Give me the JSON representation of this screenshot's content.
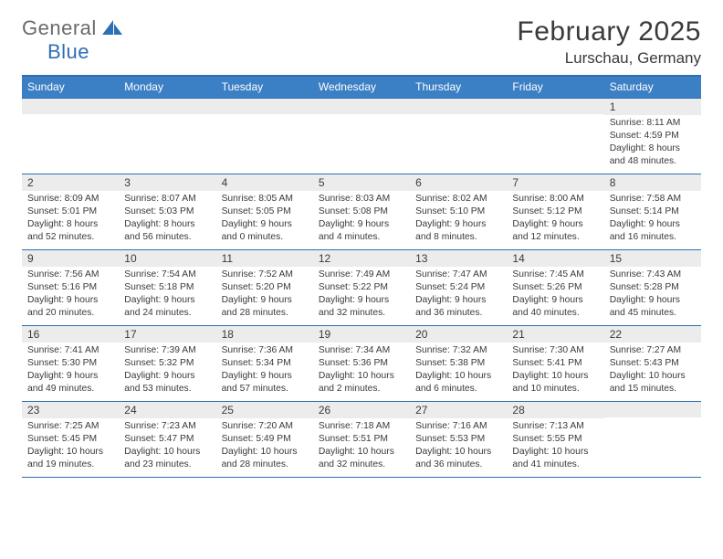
{
  "logo": {
    "general": "General",
    "blue": "Blue"
  },
  "title": "February 2025",
  "location": "Lurschau, Germany",
  "day_names": [
    "Sunday",
    "Monday",
    "Tuesday",
    "Wednesday",
    "Thursday",
    "Friday",
    "Saturday"
  ],
  "colors": {
    "header_bg": "#3b7fc4",
    "header_border": "#2d6fb4",
    "daynum_bg": "#ececec",
    "text": "#3a3a3a",
    "logo_gray": "#6a6a6a",
    "logo_blue": "#2d6fb4"
  },
  "weeks": [
    [
      {
        "n": "",
        "sr": "",
        "ss": "",
        "dl": ""
      },
      {
        "n": "",
        "sr": "",
        "ss": "",
        "dl": ""
      },
      {
        "n": "",
        "sr": "",
        "ss": "",
        "dl": ""
      },
      {
        "n": "",
        "sr": "",
        "ss": "",
        "dl": ""
      },
      {
        "n": "",
        "sr": "",
        "ss": "",
        "dl": ""
      },
      {
        "n": "",
        "sr": "",
        "ss": "",
        "dl": ""
      },
      {
        "n": "1",
        "sr": "Sunrise: 8:11 AM",
        "ss": "Sunset: 4:59 PM",
        "dl": "Daylight: 8 hours and 48 minutes."
      }
    ],
    [
      {
        "n": "2",
        "sr": "Sunrise: 8:09 AM",
        "ss": "Sunset: 5:01 PM",
        "dl": "Daylight: 8 hours and 52 minutes."
      },
      {
        "n": "3",
        "sr": "Sunrise: 8:07 AM",
        "ss": "Sunset: 5:03 PM",
        "dl": "Daylight: 8 hours and 56 minutes."
      },
      {
        "n": "4",
        "sr": "Sunrise: 8:05 AM",
        "ss": "Sunset: 5:05 PM",
        "dl": "Daylight: 9 hours and 0 minutes."
      },
      {
        "n": "5",
        "sr": "Sunrise: 8:03 AM",
        "ss": "Sunset: 5:08 PM",
        "dl": "Daylight: 9 hours and 4 minutes."
      },
      {
        "n": "6",
        "sr": "Sunrise: 8:02 AM",
        "ss": "Sunset: 5:10 PM",
        "dl": "Daylight: 9 hours and 8 minutes."
      },
      {
        "n": "7",
        "sr": "Sunrise: 8:00 AM",
        "ss": "Sunset: 5:12 PM",
        "dl": "Daylight: 9 hours and 12 minutes."
      },
      {
        "n": "8",
        "sr": "Sunrise: 7:58 AM",
        "ss": "Sunset: 5:14 PM",
        "dl": "Daylight: 9 hours and 16 minutes."
      }
    ],
    [
      {
        "n": "9",
        "sr": "Sunrise: 7:56 AM",
        "ss": "Sunset: 5:16 PM",
        "dl": "Daylight: 9 hours and 20 minutes."
      },
      {
        "n": "10",
        "sr": "Sunrise: 7:54 AM",
        "ss": "Sunset: 5:18 PM",
        "dl": "Daylight: 9 hours and 24 minutes."
      },
      {
        "n": "11",
        "sr": "Sunrise: 7:52 AM",
        "ss": "Sunset: 5:20 PM",
        "dl": "Daylight: 9 hours and 28 minutes."
      },
      {
        "n": "12",
        "sr": "Sunrise: 7:49 AM",
        "ss": "Sunset: 5:22 PM",
        "dl": "Daylight: 9 hours and 32 minutes."
      },
      {
        "n": "13",
        "sr": "Sunrise: 7:47 AM",
        "ss": "Sunset: 5:24 PM",
        "dl": "Daylight: 9 hours and 36 minutes."
      },
      {
        "n": "14",
        "sr": "Sunrise: 7:45 AM",
        "ss": "Sunset: 5:26 PM",
        "dl": "Daylight: 9 hours and 40 minutes."
      },
      {
        "n": "15",
        "sr": "Sunrise: 7:43 AM",
        "ss": "Sunset: 5:28 PM",
        "dl": "Daylight: 9 hours and 45 minutes."
      }
    ],
    [
      {
        "n": "16",
        "sr": "Sunrise: 7:41 AM",
        "ss": "Sunset: 5:30 PM",
        "dl": "Daylight: 9 hours and 49 minutes."
      },
      {
        "n": "17",
        "sr": "Sunrise: 7:39 AM",
        "ss": "Sunset: 5:32 PM",
        "dl": "Daylight: 9 hours and 53 minutes."
      },
      {
        "n": "18",
        "sr": "Sunrise: 7:36 AM",
        "ss": "Sunset: 5:34 PM",
        "dl": "Daylight: 9 hours and 57 minutes."
      },
      {
        "n": "19",
        "sr": "Sunrise: 7:34 AM",
        "ss": "Sunset: 5:36 PM",
        "dl": "Daylight: 10 hours and 2 minutes."
      },
      {
        "n": "20",
        "sr": "Sunrise: 7:32 AM",
        "ss": "Sunset: 5:38 PM",
        "dl": "Daylight: 10 hours and 6 minutes."
      },
      {
        "n": "21",
        "sr": "Sunrise: 7:30 AM",
        "ss": "Sunset: 5:41 PM",
        "dl": "Daylight: 10 hours and 10 minutes."
      },
      {
        "n": "22",
        "sr": "Sunrise: 7:27 AM",
        "ss": "Sunset: 5:43 PM",
        "dl": "Daylight: 10 hours and 15 minutes."
      }
    ],
    [
      {
        "n": "23",
        "sr": "Sunrise: 7:25 AM",
        "ss": "Sunset: 5:45 PM",
        "dl": "Daylight: 10 hours and 19 minutes."
      },
      {
        "n": "24",
        "sr": "Sunrise: 7:23 AM",
        "ss": "Sunset: 5:47 PM",
        "dl": "Daylight: 10 hours and 23 minutes."
      },
      {
        "n": "25",
        "sr": "Sunrise: 7:20 AM",
        "ss": "Sunset: 5:49 PM",
        "dl": "Daylight: 10 hours and 28 minutes."
      },
      {
        "n": "26",
        "sr": "Sunrise: 7:18 AM",
        "ss": "Sunset: 5:51 PM",
        "dl": "Daylight: 10 hours and 32 minutes."
      },
      {
        "n": "27",
        "sr": "Sunrise: 7:16 AM",
        "ss": "Sunset: 5:53 PM",
        "dl": "Daylight: 10 hours and 36 minutes."
      },
      {
        "n": "28",
        "sr": "Sunrise: 7:13 AM",
        "ss": "Sunset: 5:55 PM",
        "dl": "Daylight: 10 hours and 41 minutes."
      },
      {
        "n": "",
        "sr": "",
        "ss": "",
        "dl": ""
      }
    ]
  ]
}
